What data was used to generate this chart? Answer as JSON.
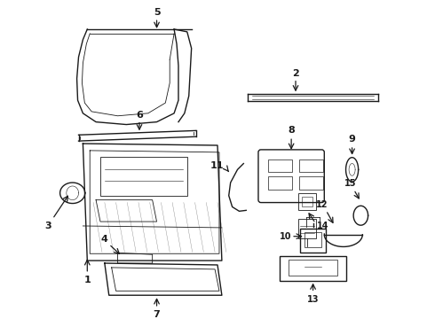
{
  "bg_color": "#ffffff",
  "line_color": "#1a1a1a",
  "label_color": "#000000",
  "figsize": [
    4.9,
    3.6
  ],
  "dpi": 100,
  "xlim": [
    0,
    490
  ],
  "ylim": [
    0,
    360
  ]
}
